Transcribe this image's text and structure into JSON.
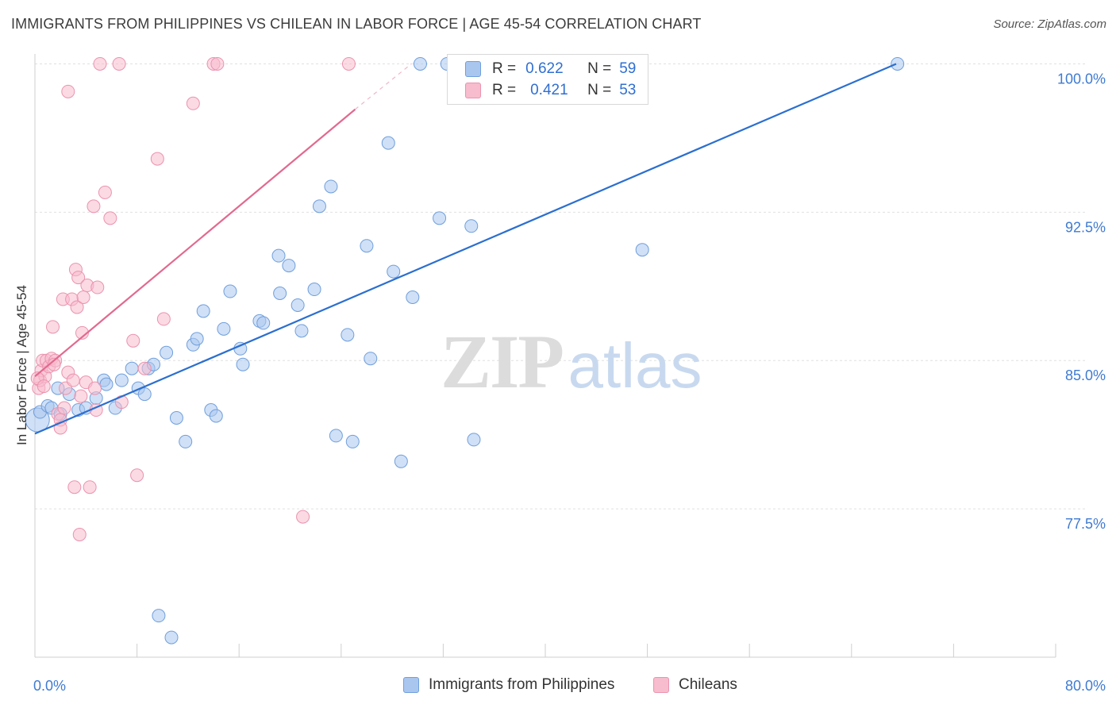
{
  "colors": {
    "blue_fill": "#a9c6ef",
    "blue_stroke": "#6f9fdc",
    "blue_line": "#2b6fcf",
    "pink_fill": "#f7bccd",
    "pink_stroke": "#eb93ae",
    "pink_line": "#e2698f",
    "tick_label": "#3f7bd1",
    "grid": "#e0e0e0"
  },
  "legend": {
    "series1": {
      "r_label": "R =",
      "r_value": "0.622",
      "n_label": "N =",
      "n_value": "59"
    },
    "series2": {
      "r_label": "R =",
      "r_value": "0.421",
      "n_label": "N =",
      "n_value": "53"
    }
  },
  "watermark": {
    "zip": "ZIP",
    "atlas": "atlas"
  },
  "chart_data": {
    "type": "scatter",
    "title": "IMMIGRANTS FROM PHILIPPINES VS CHILEAN IN LABOR FORCE | AGE 45-54 CORRELATION CHART",
    "source": "Source: ZipAtlas.com",
    "xlabel": "",
    "ylabel": "In Labor Force | Age 45-54",
    "xlim": [
      0,
      80
    ],
    "ylim": [
      70.0,
      100.5
    ],
    "x_tick_labels": [
      {
        "value": 0,
        "label": "0.0%"
      },
      {
        "value": 80,
        "label": "80.0%"
      }
    ],
    "y_ticks": [
      {
        "value": 77.5,
        "label": "77.5%"
      },
      {
        "value": 85.0,
        "label": "85.0%"
      },
      {
        "value": 92.5,
        "label": "92.5%"
      },
      {
        "value": 100.0,
        "label": "100.0%"
      }
    ],
    "legend_position": "top-center",
    "series": [
      {
        "name": "Immigrants from Philippines",
        "color": "blue",
        "r": 0.622,
        "n": 59,
        "trend": {
          "x0": 0.0,
          "y0": 81.3,
          "x1": 67.5,
          "y1": 100.0
        },
        "points": [
          [
            0.2,
            82.0
          ],
          [
            0.4,
            82.4
          ],
          [
            1.0,
            82.7
          ],
          [
            1.3,
            82.6
          ],
          [
            1.8,
            83.6
          ],
          [
            2.0,
            82.3
          ],
          [
            2.7,
            83.3
          ],
          [
            3.4,
            82.5
          ],
          [
            4.0,
            82.6
          ],
          [
            4.8,
            83.1
          ],
          [
            5.4,
            84.0
          ],
          [
            5.6,
            83.8
          ],
          [
            6.3,
            82.6
          ],
          [
            6.8,
            84.0
          ],
          [
            7.6,
            84.6
          ],
          [
            8.1,
            83.6
          ],
          [
            8.6,
            83.3
          ],
          [
            8.9,
            84.6
          ],
          [
            9.3,
            84.8
          ],
          [
            10.3,
            85.4
          ],
          [
            11.1,
            82.1
          ],
          [
            11.8,
            80.9
          ],
          [
            12.4,
            85.8
          ],
          [
            12.7,
            86.1
          ],
          [
            13.2,
            87.5
          ],
          [
            13.8,
            82.5
          ],
          [
            14.2,
            82.2
          ],
          [
            14.8,
            86.6
          ],
          [
            15.3,
            88.5
          ],
          [
            16.1,
            85.6
          ],
          [
            16.3,
            84.8
          ],
          [
            17.6,
            87.0
          ],
          [
            17.9,
            86.9
          ],
          [
            19.1,
            90.3
          ],
          [
            19.2,
            88.4
          ],
          [
            19.9,
            89.8
          ],
          [
            20.6,
            87.8
          ],
          [
            20.9,
            86.5
          ],
          [
            21.9,
            88.6
          ],
          [
            22.3,
            92.8
          ],
          [
            23.2,
            93.8
          ],
          [
            23.6,
            81.2
          ],
          [
            24.5,
            86.3
          ],
          [
            24.9,
            80.9
          ],
          [
            26.0,
            90.8
          ],
          [
            26.3,
            85.1
          ],
          [
            27.7,
            96.0
          ],
          [
            28.1,
            89.5
          ],
          [
            28.7,
            79.9
          ],
          [
            29.6,
            88.2
          ],
          [
            30.2,
            100.0
          ],
          [
            31.7,
            92.2
          ],
          [
            32.3,
            100.0
          ],
          [
            34.2,
            91.8
          ],
          [
            34.4,
            81.0
          ],
          [
            47.6,
            90.6
          ],
          [
            67.6,
            100.0
          ],
          [
            9.7,
            72.1
          ],
          [
            10.7,
            71.0
          ]
        ]
      },
      {
        "name": "Chileans",
        "color": "pink",
        "r": 0.421,
        "n": 53,
        "trend": {
          "x0": 0.0,
          "y0": 84.2,
          "x1": 25.1,
          "y1": 97.7
        },
        "trend_dashed": {
          "x0": 25.1,
          "y0": 97.7,
          "x1": 29.5,
          "y1": 100.0
        },
        "points": [
          [
            0.3,
            83.6
          ],
          [
            0.4,
            84.0
          ],
          [
            0.5,
            84.5
          ],
          [
            0.6,
            85.0
          ],
          [
            0.8,
            84.2
          ],
          [
            0.9,
            85.0
          ],
          [
            1.1,
            84.7
          ],
          [
            1.3,
            85.1
          ],
          [
            1.4,
            86.7
          ],
          [
            1.6,
            85.0
          ],
          [
            1.8,
            82.3
          ],
          [
            2.0,
            82.0
          ],
          [
            2.0,
            81.6
          ],
          [
            2.2,
            88.1
          ],
          [
            2.4,
            83.6
          ],
          [
            2.6,
            84.4
          ],
          [
            2.6,
            98.6
          ],
          [
            2.9,
            88.1
          ],
          [
            3.0,
            84.0
          ],
          [
            3.1,
            78.6
          ],
          [
            3.2,
            89.6
          ],
          [
            3.3,
            87.7
          ],
          [
            3.4,
            89.2
          ],
          [
            3.5,
            76.2
          ],
          [
            3.6,
            83.2
          ],
          [
            3.7,
            86.4
          ],
          [
            3.8,
            88.2
          ],
          [
            4.0,
            83.9
          ],
          [
            4.1,
            88.8
          ],
          [
            4.3,
            78.6
          ],
          [
            4.6,
            92.8
          ],
          [
            4.7,
            83.6
          ],
          [
            4.8,
            82.5
          ],
          [
            4.9,
            88.7
          ],
          [
            5.1,
            100.0
          ],
          [
            5.5,
            93.5
          ],
          [
            5.9,
            92.2
          ],
          [
            6.6,
            100.0
          ],
          [
            6.8,
            82.9
          ],
          [
            7.7,
            86.0
          ],
          [
            8.0,
            79.2
          ],
          [
            8.6,
            84.6
          ],
          [
            9.6,
            95.2
          ],
          [
            10.1,
            87.1
          ],
          [
            12.4,
            98.0
          ],
          [
            14.0,
            100.0
          ],
          [
            14.3,
            100.0
          ],
          [
            21.0,
            77.1
          ],
          [
            24.6,
            100.0
          ],
          [
            0.2,
            84.1
          ],
          [
            1.5,
            84.8
          ],
          [
            2.3,
            82.6
          ],
          [
            0.7,
            83.7
          ]
        ]
      }
    ]
  }
}
